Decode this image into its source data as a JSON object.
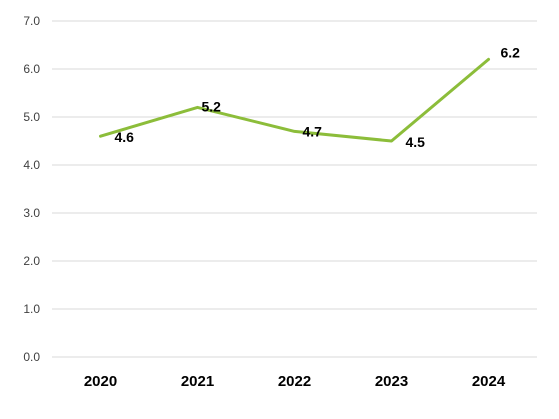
{
  "chart_data": {
    "type": "line",
    "title": "",
    "xlabel": "",
    "ylabel": "",
    "x": [
      "2020",
      "2021",
      "2022",
      "2023",
      "2024"
    ],
    "series": [
      {
        "values": [
          4.6,
          5.2,
          4.7,
          4.5,
          6.2
        ],
        "data_labels": [
          "4.6",
          "5.2",
          "4.7",
          "4.5",
          "6.2"
        ],
        "color": "#8cbd3a"
      }
    ],
    "ylim": [
      0,
      7
    ],
    "yticks": [
      "0.0",
      "1.0",
      "2.0",
      "3.0",
      "4.0",
      "5.0",
      "6.0",
      "7.0"
    ],
    "grid": "horizontal",
    "legend": "none"
  }
}
